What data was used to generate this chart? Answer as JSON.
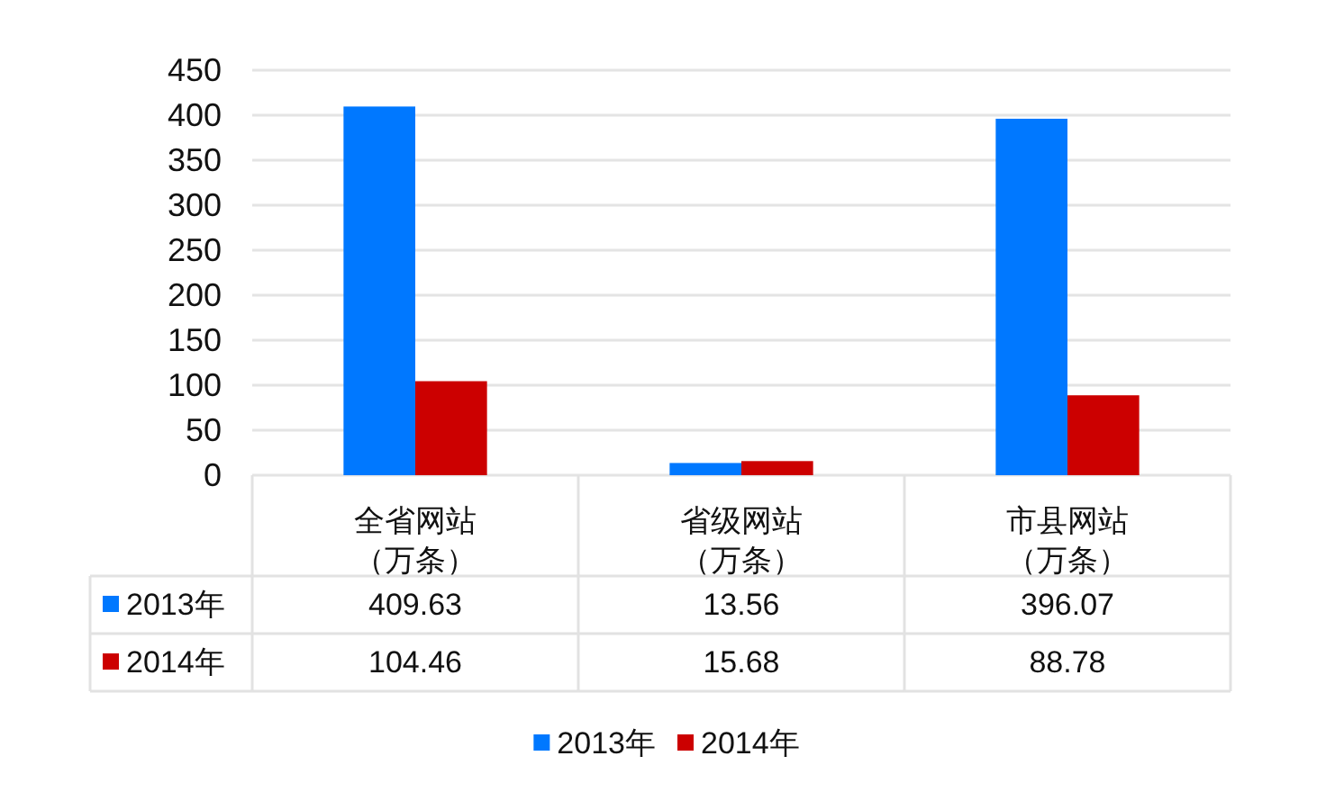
{
  "chart_data": {
    "type": "bar",
    "categories": [
      "全省网站（万条）",
      "省级网站（万条）",
      "市县网站（万条）"
    ],
    "series": [
      {
        "name": "2013年",
        "color": "#0078ff",
        "values": [
          409.63,
          13.56,
          396.07
        ]
      },
      {
        "name": "2014年",
        "color": "#cc0000",
        "values": [
          104.46,
          15.68,
          88.78
        ]
      }
    ],
    "ylim": [
      0,
      450
    ],
    "yticks": [
      0,
      50,
      100,
      150,
      200,
      250,
      300,
      350,
      400,
      450
    ],
    "grid": "y",
    "legend": "bottom",
    "data_labels": true
  }
}
